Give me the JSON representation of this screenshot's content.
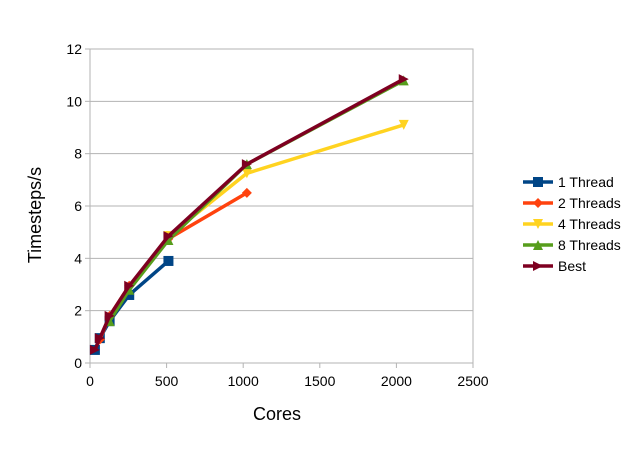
{
  "chart_data": {
    "type": "line",
    "title": "",
    "xlabel": "Cores",
    "ylabel": "Timesteps/s",
    "xlim": [
      0,
      2500
    ],
    "ylim": [
      0,
      12
    ],
    "xticks": [
      0,
      500,
      1000,
      1500,
      2000,
      2500
    ],
    "yticks": [
      0,
      2,
      4,
      6,
      8,
      10,
      12
    ],
    "grid": "horizontal",
    "legend_position": "right",
    "series": [
      {
        "name": "1 Thread",
        "color": "#004586",
        "marker": "square",
        "points": [
          [
            32,
            0.5
          ],
          [
            64,
            0.95
          ],
          [
            128,
            1.6
          ],
          [
            256,
            2.6
          ],
          [
            512,
            3.9
          ]
        ]
      },
      {
        "name": "2 Threads",
        "color": "#ff420e",
        "marker": "diamond",
        "points": [
          [
            64,
            0.9
          ],
          [
            128,
            1.8
          ],
          [
            256,
            2.95
          ],
          [
            512,
            4.75
          ],
          [
            1024,
            6.5
          ]
        ]
      },
      {
        "name": "4 Threads",
        "color": "#ffd320",
        "marker": "triangle-down",
        "points": [
          [
            128,
            1.65
          ],
          [
            256,
            2.85
          ],
          [
            512,
            4.85
          ],
          [
            1024,
            7.25
          ],
          [
            2048,
            9.1
          ]
        ]
      },
      {
        "name": "8 Threads",
        "color": "#579d1c",
        "marker": "triangle-up",
        "points": [
          [
            128,
            1.6
          ],
          [
            256,
            2.8
          ],
          [
            512,
            4.7
          ],
          [
            1024,
            7.6
          ],
          [
            2048,
            10.8
          ]
        ]
      },
      {
        "name": "Best",
        "color": "#7e0021",
        "marker": "triangle-right",
        "points": [
          [
            32,
            0.5
          ],
          [
            64,
            0.95
          ],
          [
            128,
            1.8
          ],
          [
            256,
            2.95
          ],
          [
            512,
            4.85
          ],
          [
            1024,
            7.6
          ],
          [
            2048,
            10.85
          ]
        ]
      }
    ]
  }
}
